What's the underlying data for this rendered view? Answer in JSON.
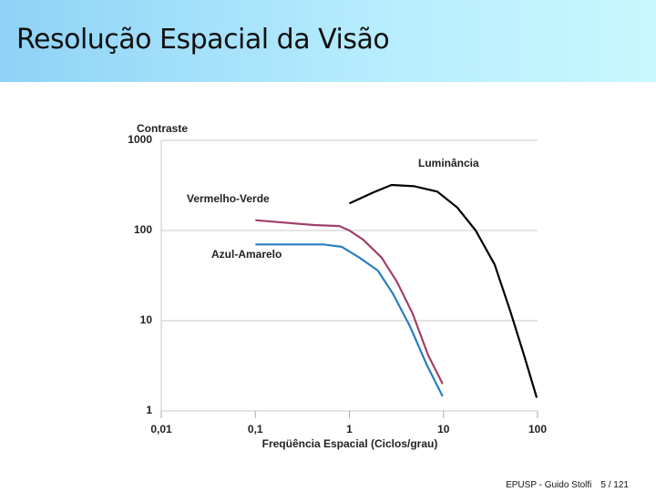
{
  "slide": {
    "title": "Resolução Espacial da Visão",
    "footer": "EPUSP - Guido Stolfi",
    "page": "5 / 121"
  },
  "chart_data": {
    "type": "line",
    "log_x": true,
    "log_y": true,
    "grid": true,
    "ylabel": "Contraste",
    "xlabel": "Freqüência Espacial (Ciclos/grau)",
    "xlim": [
      0.01,
      100
    ],
    "ylim": [
      1,
      1000
    ],
    "xticks": [
      {
        "value": 0.01,
        "label": "0,01"
      },
      {
        "value": 0.1,
        "label": "0,1"
      },
      1,
      10,
      100
    ],
    "yticks": [
      1,
      10,
      100,
      1000
    ],
    "series": [
      {
        "name": "Luminância",
        "color": "#000000",
        "x": [
          1,
          1.8,
          2.8,
          4.9,
          8.6,
          14,
          22,
          35,
          51,
          72,
          98
        ],
        "values": [
          200,
          265,
          320,
          310,
          270,
          180,
          100,
          42,
          13,
          4.1,
          1.4
        ]
      },
      {
        "name": "Vermelho-Verde",
        "color": "#a0406a",
        "x": [
          0.1,
          0.42,
          0.78,
          1,
          1.4,
          2.2,
          3.2,
          4.7,
          6.9,
          9.8
        ],
        "values": [
          130,
          115,
          112,
          100,
          79,
          50,
          27,
          12,
          4.1,
          2.0
        ]
      },
      {
        "name": "Azul-Amarelo",
        "color": "#2a7ec0",
        "x": [
          0.1,
          0.53,
          0.83,
          1.28,
          2.0,
          2.9,
          4.4,
          6.6,
          9.8
        ],
        "values": [
          70,
          70,
          66,
          50,
          36,
          20,
          8.7,
          3.3,
          1.45
        ]
      }
    ]
  }
}
